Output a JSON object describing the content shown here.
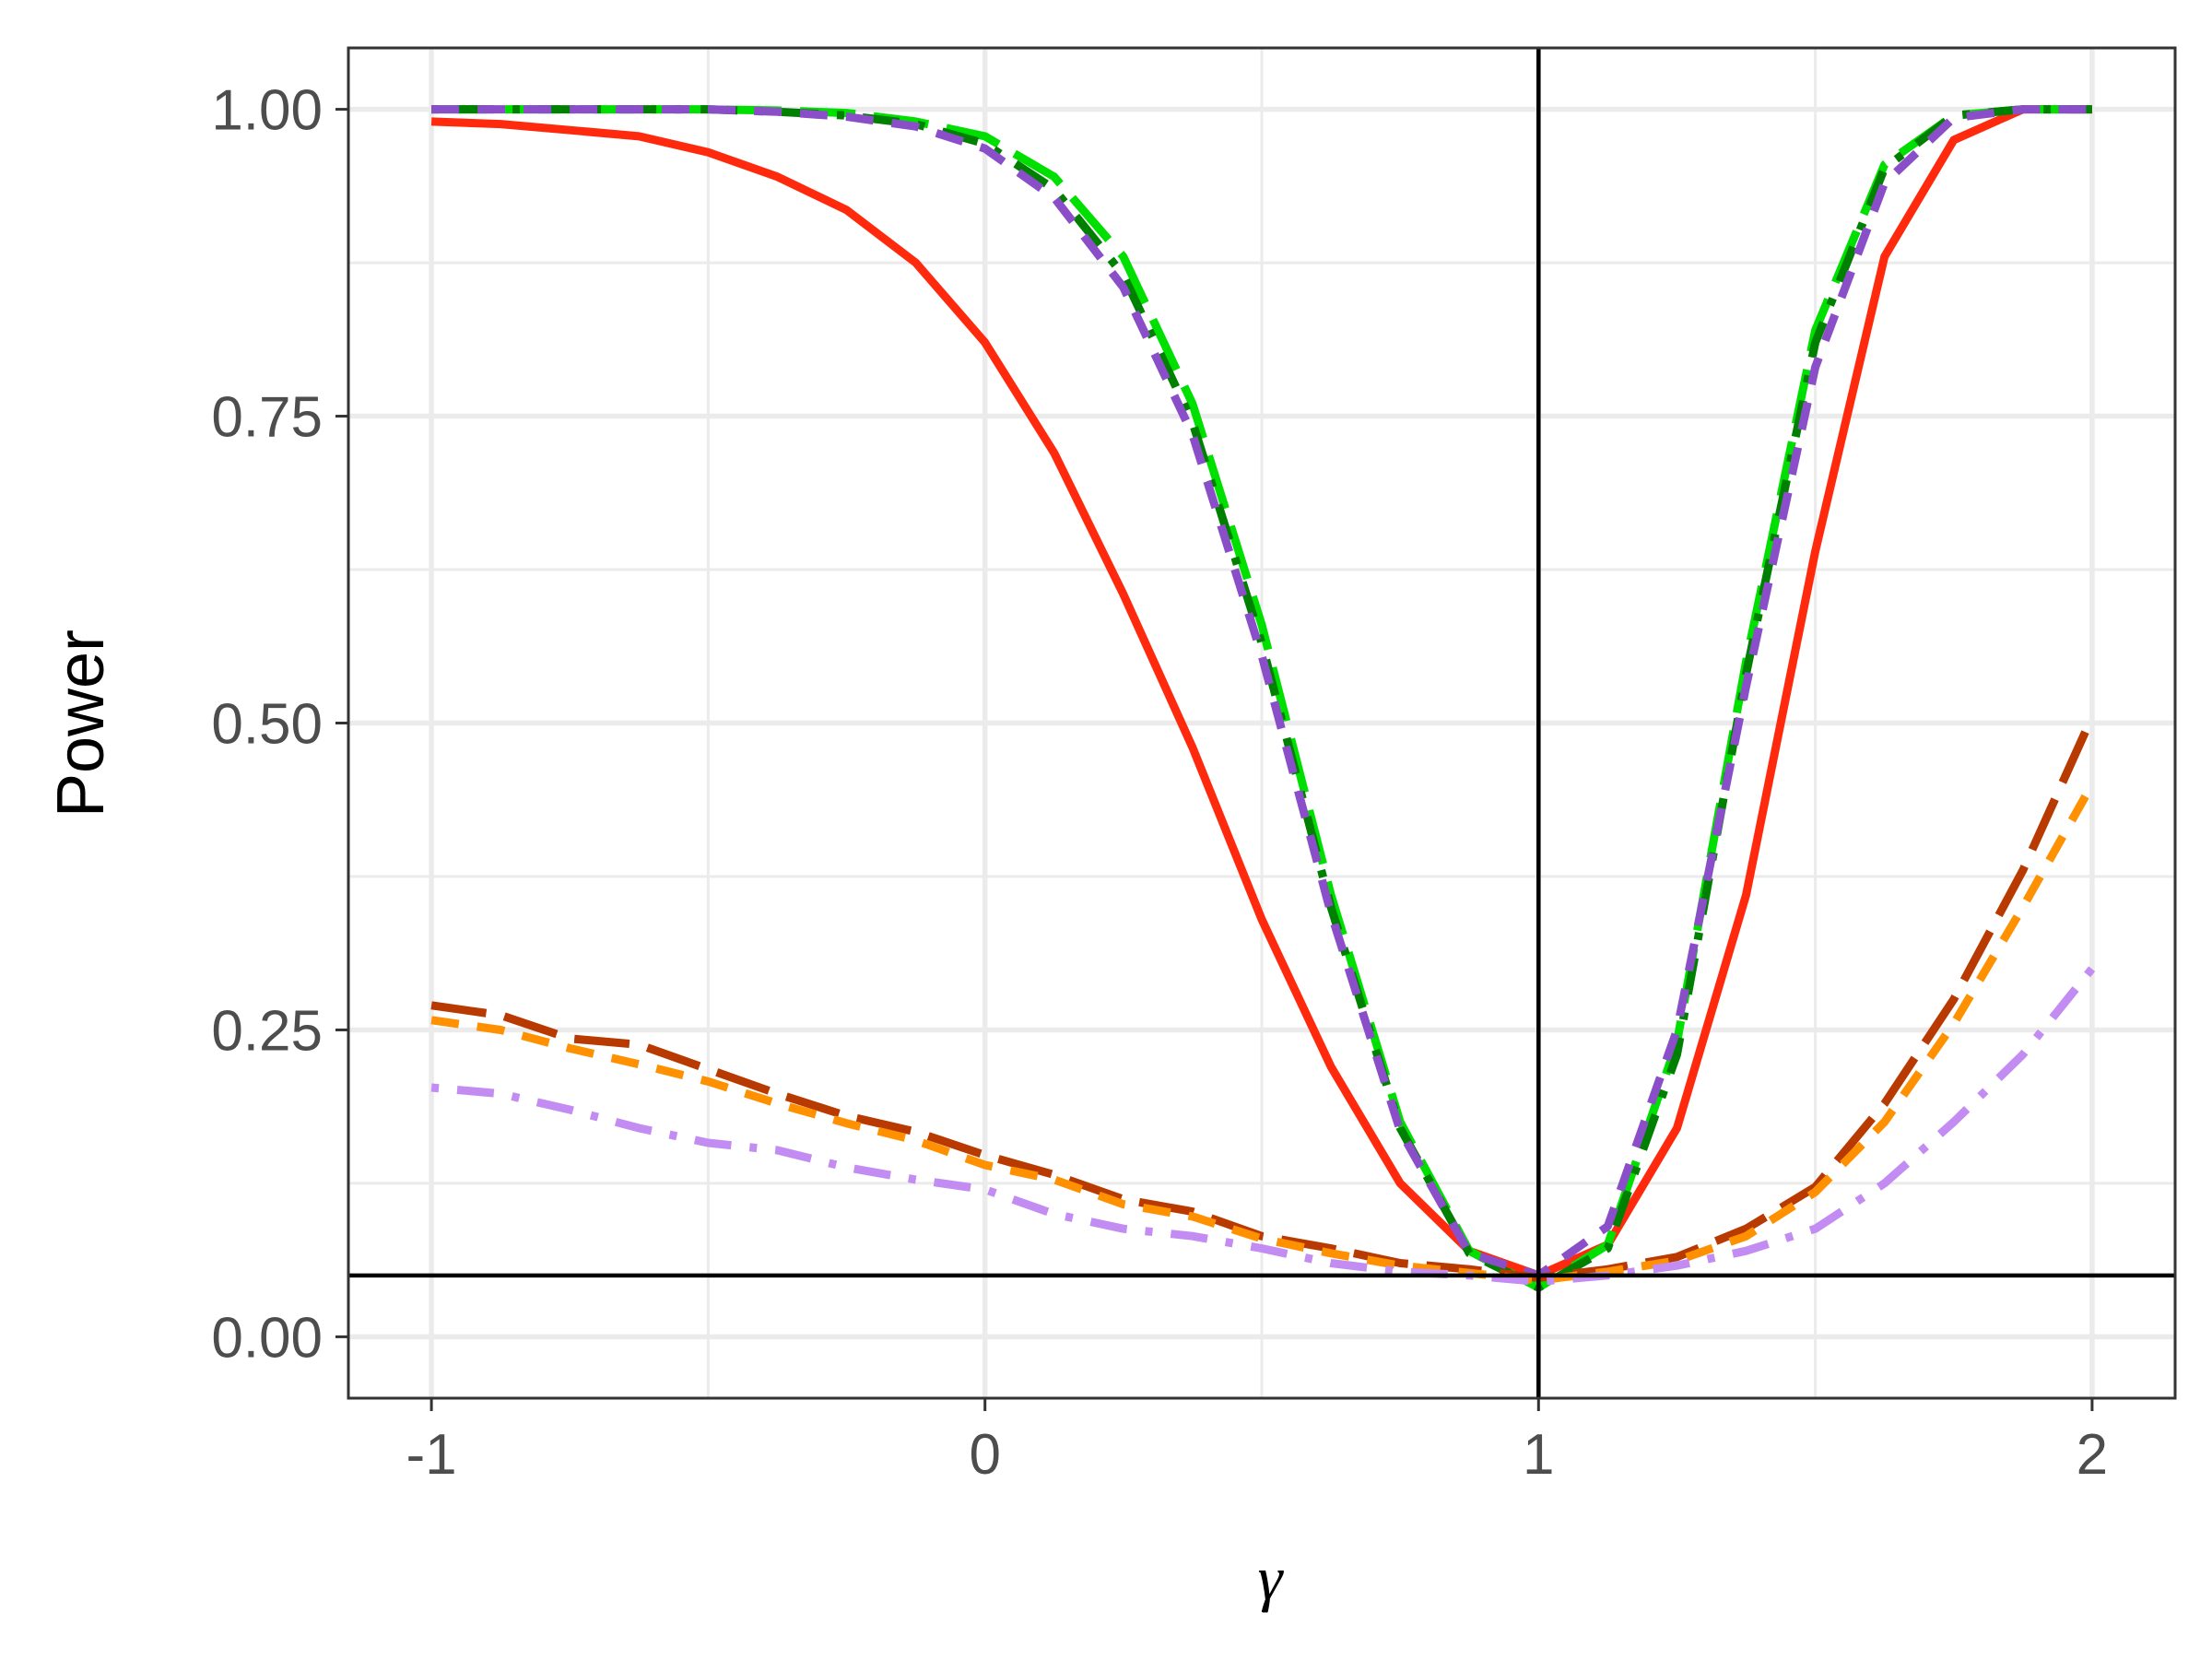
{
  "chart_data": {
    "type": "line",
    "xlabel": "γ",
    "ylabel": "Power",
    "xlim": [
      -1.15,
      2.15
    ],
    "ylim": [
      -0.05,
      1.05
    ],
    "x_ticks": [
      -1,
      0,
      1,
      2
    ],
    "x_tick_labels": [
      "-1",
      "0",
      "1",
      "2"
    ],
    "y_ticks": [
      0,
      0.25,
      0.5,
      0.75,
      1
    ],
    "y_tick_labels": [
      "0.00",
      "0.25",
      "0.50",
      "0.75",
      "1.00"
    ],
    "grid": true,
    "reference_lines": {
      "hline": 0.05,
      "vline": 1
    },
    "x": [
      -1,
      -0.875,
      -0.75,
      -0.625,
      -0.5,
      -0.375,
      -0.25,
      -0.125,
      0,
      0.125,
      0.25,
      0.375,
      0.5,
      0.625,
      0.75,
      0.875,
      1,
      1.125,
      1.25,
      1.375,
      1.5,
      1.625,
      1.75,
      1.875,
      2
    ],
    "series": [
      {
        "color": "#ff2a0d",
        "dash": "solid",
        "values": [
          0.99,
          0.988,
          0.983,
          0.978,
          0.965,
          0.945,
          0.918,
          0.875,
          0.81,
          0.72,
          0.605,
          0.48,
          0.34,
          0.22,
          0.125,
          0.07,
          0.05,
          0.075,
          0.17,
          0.36,
          0.64,
          0.88,
          0.975,
          1.0,
          1.0
        ]
      },
      {
        "color": "#00e000",
        "dash": "longdash",
        "values": [
          1.0,
          1.0,
          1.0,
          1.0,
          1.0,
          0.999,
          0.997,
          0.99,
          0.978,
          0.945,
          0.88,
          0.76,
          0.58,
          0.36,
          0.175,
          0.07,
          0.04,
          0.075,
          0.24,
          0.55,
          0.82,
          0.955,
          0.995,
          1.0,
          1.0
        ]
      },
      {
        "color": "#008000",
        "dash": "dotdash",
        "values": [
          1.0,
          1.0,
          1.0,
          1.0,
          1.0,
          0.998,
          0.995,
          0.988,
          0.972,
          0.935,
          0.865,
          0.745,
          0.565,
          0.35,
          0.17,
          0.068,
          0.04,
          0.072,
          0.23,
          0.54,
          0.81,
          0.952,
          0.995,
          1.0,
          1.0
        ]
      },
      {
        "color": "#8a4fc8",
        "dash": "dashed",
        "values": [
          1.0,
          1.0,
          1.0,
          1.0,
          1.0,
          0.998,
          0.994,
          0.986,
          0.968,
          0.928,
          0.855,
          0.735,
          0.555,
          0.345,
          0.168,
          0.068,
          0.05,
          0.09,
          0.25,
          0.53,
          0.79,
          0.94,
          0.993,
          1.0,
          1.0
        ]
      },
      {
        "color": "#b83a00",
        "dash": "longdash",
        "values": [
          0.27,
          0.262,
          0.243,
          0.238,
          0.218,
          0.198,
          0.18,
          0.167,
          0.148,
          0.132,
          0.112,
          0.102,
          0.082,
          0.072,
          0.06,
          0.055,
          0.048,
          0.055,
          0.065,
          0.088,
          0.122,
          0.19,
          0.275,
          0.38,
          0.505
        ]
      },
      {
        "color": "#ff9000",
        "dash": "dashed",
        "values": [
          0.258,
          0.25,
          0.235,
          0.222,
          0.208,
          0.19,
          0.174,
          0.16,
          0.14,
          0.128,
          0.108,
          0.098,
          0.08,
          0.068,
          0.058,
          0.052,
          0.046,
          0.053,
          0.062,
          0.082,
          0.118,
          0.175,
          0.255,
          0.35,
          0.45
        ]
      },
      {
        "color": "#c28cf2",
        "dash": "dotdash",
        "values": [
          0.203,
          0.198,
          0.185,
          0.17,
          0.158,
          0.152,
          0.138,
          0.128,
          0.12,
          0.1,
          0.088,
          0.082,
          0.072,
          0.06,
          0.053,
          0.05,
          0.045,
          0.05,
          0.058,
          0.07,
          0.088,
          0.125,
          0.175,
          0.23,
          0.3
        ]
      }
    ]
  }
}
